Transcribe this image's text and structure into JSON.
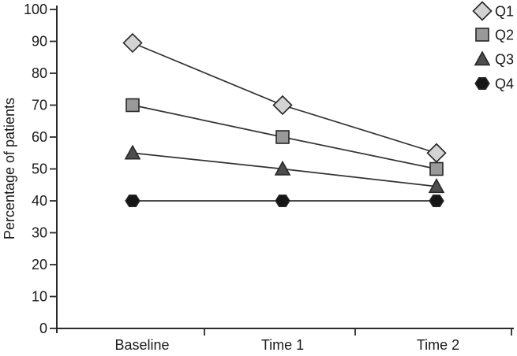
{
  "figure": {
    "background": "#ffffff"
  },
  "chart_data": {
    "type": "line",
    "title": "",
    "xlabel": "",
    "ylabel": "Percentage of patients",
    "categories": [
      "Baseline",
      "Time 1",
      "Time 2"
    ],
    "series": [
      {
        "name": "Q1",
        "marker": "diamond",
        "marker_fill": "#d3d3d3",
        "values": [
          89.5,
          70,
          55
        ]
      },
      {
        "name": "Q2",
        "marker": "square",
        "marker_fill": "#999999",
        "values": [
          70,
          60,
          50
        ]
      },
      {
        "name": "Q3",
        "marker": "triangle",
        "marker_fill": "#4d4d4d",
        "values": [
          55,
          50,
          44.5
        ]
      },
      {
        "name": "Q4",
        "marker": "hexagon",
        "marker_fill": "#161616",
        "values": [
          40,
          40,
          40
        ]
      }
    ],
    "ylim": [
      0,
      100
    ],
    "yticks": [
      0,
      10,
      20,
      30,
      40,
      50,
      60,
      70,
      80,
      90,
      100
    ],
    "grid": false,
    "legend_position": "top-right",
    "line_color": "#333333",
    "axis_color": "#2b2b2b",
    "text_color": "#1a1a1a"
  }
}
